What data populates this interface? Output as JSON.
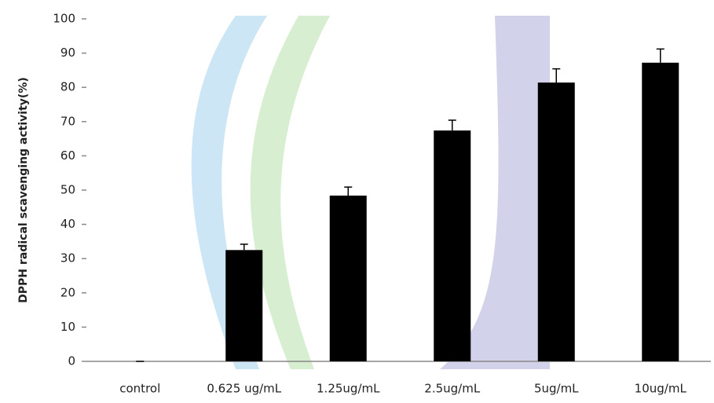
{
  "chart_data": {
    "type": "bar",
    "y_label": "DPPH radical scavenging activity(%)",
    "categories": [
      "control",
      "0.625 ug/mL",
      "1.25ug/mL",
      "2.5ug/mL",
      "5ug/mL",
      "10ug/mL"
    ],
    "values": [
      0,
      32.5,
      48.4,
      67.4,
      81.4,
      87.2
    ],
    "errors": [
      0,
      1.7,
      2.5,
      3,
      4,
      4
    ],
    "color": "#000000",
    "ylim": [
      0,
      100
    ],
    "yticks": [
      0,
      10,
      20,
      30,
      40,
      50,
      60,
      70,
      80,
      90,
      100
    ]
  }
}
